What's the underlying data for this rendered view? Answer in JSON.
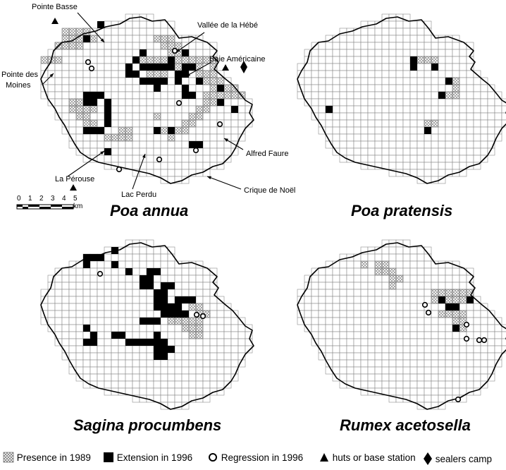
{
  "panels": [
    {
      "id": "poa-annua",
      "species": "Poa annua"
    },
    {
      "id": "poa-pratensis",
      "species": "Poa pratensis"
    },
    {
      "id": "sagina-procumbens",
      "species": "Sagina procumbens"
    },
    {
      "id": "rumex-acetosella",
      "species": "Rumex acetosella"
    }
  ],
  "place_labels": {
    "pointe_basse": "Pointe Basse",
    "vallee_hebe": "Vallée de la Hébé",
    "baie_americaine": "Baie Américaine",
    "pointe_des_moines_1": "Pointe des",
    "pointe_des_moines_2": "Moines",
    "alfred_faure": "Alfred Faure",
    "la_perouse": "La Pérouse",
    "lac_perdu": "Lac Perdu",
    "crique_de_noel": "Crique de Noël"
  },
  "scale_bar": {
    "ticks": [
      "0",
      "1",
      "2",
      "3",
      "4",
      "5 km"
    ]
  },
  "legend": {
    "presence": "Presence in 1989",
    "extension": "Extension in 1996",
    "regression": "Regression in 1996",
    "huts": "huts or base station",
    "sealers": "sealers camp"
  },
  "grid_cells": {
    "poa_annua": {
      "presence": [
        [
          3,
          2
        ],
        [
          4,
          2
        ],
        [
          5,
          2
        ],
        [
          6,
          2
        ],
        [
          3,
          3
        ],
        [
          4,
          3
        ],
        [
          5,
          3
        ],
        [
          6,
          3
        ],
        [
          7,
          3
        ],
        [
          2,
          4
        ],
        [
          3,
          4
        ],
        [
          4,
          4
        ],
        [
          5,
          4
        ],
        [
          16,
          3
        ],
        [
          17,
          3
        ],
        [
          18,
          3
        ],
        [
          17,
          4
        ],
        [
          18,
          4
        ],
        [
          19,
          4
        ],
        [
          18,
          5
        ],
        [
          19,
          5
        ],
        [
          20,
          5
        ],
        [
          0,
          6
        ],
        [
          1,
          6
        ],
        [
          2,
          6
        ],
        [
          14,
          6
        ],
        [
          15,
          6
        ],
        [
          16,
          6
        ],
        [
          17,
          6
        ],
        [
          18,
          6
        ],
        [
          19,
          6
        ],
        [
          20,
          6
        ],
        [
          21,
          6
        ],
        [
          22,
          6
        ],
        [
          23,
          6
        ],
        [
          24,
          6
        ],
        [
          15,
          7
        ],
        [
          16,
          7
        ],
        [
          19,
          7
        ],
        [
          21,
          7
        ],
        [
          22,
          7
        ],
        [
          24,
          7
        ],
        [
          15,
          8
        ],
        [
          16,
          8
        ],
        [
          17,
          8
        ],
        [
          22,
          8
        ],
        [
          23,
          8
        ],
        [
          24,
          8
        ],
        [
          23,
          9
        ],
        [
          24,
          9
        ],
        [
          25,
          9
        ],
        [
          24,
          10
        ],
        [
          25,
          10
        ],
        [
          26,
          10
        ],
        [
          27,
          10
        ],
        [
          23,
          11
        ],
        [
          24,
          11
        ],
        [
          25,
          11
        ],
        [
          26,
          11
        ],
        [
          27,
          11
        ],
        [
          28,
          11
        ],
        [
          4,
          12
        ],
        [
          5,
          12
        ],
        [
          23,
          12
        ],
        [
          24,
          12
        ],
        [
          25,
          12
        ],
        [
          4,
          13
        ],
        [
          5,
          13
        ],
        [
          6,
          13
        ],
        [
          7,
          13
        ],
        [
          22,
          13
        ],
        [
          23,
          13
        ],
        [
          5,
          14
        ],
        [
          6,
          14
        ],
        [
          16,
          14
        ],
        [
          21,
          14
        ],
        [
          22,
          14
        ],
        [
          6,
          15
        ],
        [
          7,
          15
        ],
        [
          20,
          15
        ],
        [
          21,
          15
        ],
        [
          6,
          16
        ],
        [
          7,
          16
        ],
        [
          8,
          16
        ],
        [
          11,
          16
        ],
        [
          12,
          16
        ],
        [
          17,
          16
        ],
        [
          18,
          16
        ],
        [
          19,
          16
        ],
        [
          20,
          16
        ],
        [
          9,
          17
        ],
        [
          10,
          17
        ],
        [
          11,
          17
        ],
        [
          12,
          17
        ],
        [
          18,
          17
        ]
      ],
      "extension": [
        [
          8,
          1
        ],
        [
          6,
          3
        ],
        [
          14,
          5
        ],
        [
          20,
          5
        ],
        [
          13,
          6
        ],
        [
          18,
          6
        ],
        [
          12,
          7
        ],
        [
          14,
          7
        ],
        [
          15,
          7
        ],
        [
          16,
          7
        ],
        [
          17,
          7
        ],
        [
          18,
          7
        ],
        [
          20,
          7
        ],
        [
          21,
          7
        ],
        [
          12,
          8
        ],
        [
          13,
          8
        ],
        [
          19,
          8
        ],
        [
          20,
          8
        ],
        [
          14,
          9
        ],
        [
          15,
          9
        ],
        [
          16,
          9
        ],
        [
          17,
          9
        ],
        [
          19,
          9
        ],
        [
          22,
          9
        ],
        [
          16,
          10
        ],
        [
          20,
          10
        ],
        [
          25,
          10
        ],
        [
          6,
          11
        ],
        [
          7,
          11
        ],
        [
          8,
          11
        ],
        [
          20,
          11
        ],
        [
          21,
          11
        ],
        [
          6,
          12
        ],
        [
          7,
          12
        ],
        [
          9,
          12
        ],
        [
          25,
          12
        ],
        [
          9,
          13
        ],
        [
          27,
          13
        ],
        [
          9,
          14
        ],
        [
          9,
          15
        ],
        [
          6,
          16
        ],
        [
          7,
          16
        ],
        [
          8,
          16
        ],
        [
          16,
          16
        ],
        [
          18,
          16
        ],
        [
          21,
          18
        ],
        [
          22,
          18
        ],
        [
          9,
          19
        ]
      ]
    },
    "poa_pratensis": {
      "presence": [
        [
          16,
          6
        ],
        [
          17,
          6
        ],
        [
          18,
          6
        ],
        [
          19,
          6
        ],
        [
          21,
          9
        ],
        [
          22,
          9
        ],
        [
          22,
          10
        ],
        [
          20,
          11
        ],
        [
          21,
          11
        ],
        [
          22,
          11
        ],
        [
          4,
          13
        ],
        [
          18,
          15
        ],
        [
          19,
          15
        ]
      ],
      "extension": [
        [
          16,
          6
        ],
        [
          16,
          7
        ],
        [
          19,
          7
        ],
        [
          21,
          9
        ],
        [
          20,
          11
        ],
        [
          4,
          13
        ],
        [
          18,
          16
        ]
      ]
    },
    "sagina_procumbens": {
      "presence": [
        [
          21,
          9
        ],
        [
          22,
          9
        ],
        [
          22,
          10
        ],
        [
          23,
          10
        ],
        [
          18,
          11
        ],
        [
          19,
          11
        ],
        [
          20,
          11
        ],
        [
          21,
          11
        ],
        [
          22,
          11
        ],
        [
          20,
          12
        ],
        [
          21,
          12
        ],
        [
          22,
          12
        ],
        [
          21,
          13
        ],
        [
          22,
          13
        ]
      ],
      "extension": [
        [
          10,
          1
        ],
        [
          6,
          2
        ],
        [
          7,
          2
        ],
        [
          8,
          2
        ],
        [
          6,
          3
        ],
        [
          10,
          3
        ],
        [
          12,
          4
        ],
        [
          15,
          4
        ],
        [
          16,
          4
        ],
        [
          14,
          5
        ],
        [
          15,
          5
        ],
        [
          14,
          6
        ],
        [
          15,
          6
        ],
        [
          17,
          6
        ],
        [
          18,
          6
        ],
        [
          16,
          7
        ],
        [
          17,
          7
        ],
        [
          16,
          8
        ],
        [
          17,
          8
        ],
        [
          19,
          8
        ],
        [
          20,
          8
        ],
        [
          21,
          8
        ],
        [
          16,
          9
        ],
        [
          17,
          9
        ],
        [
          18,
          9
        ],
        [
          19,
          9
        ],
        [
          17,
          10
        ],
        [
          18,
          10
        ],
        [
          19,
          10
        ],
        [
          20,
          10
        ],
        [
          14,
          11
        ],
        [
          15,
          11
        ],
        [
          16,
          11
        ],
        [
          6,
          12
        ],
        [
          7,
          13
        ],
        [
          10,
          13
        ],
        [
          11,
          13
        ],
        [
          16,
          13
        ],
        [
          6,
          14
        ],
        [
          7,
          14
        ],
        [
          13,
          14
        ],
        [
          14,
          14
        ],
        [
          15,
          14
        ],
        [
          16,
          14
        ],
        [
          17,
          14
        ],
        [
          16,
          15
        ],
        [
          17,
          15
        ],
        [
          18,
          15
        ],
        [
          16,
          16
        ],
        [
          17,
          16
        ],
        [
          12,
          14
        ]
      ]
    },
    "rumex_acetosella": {
      "presence": [
        [
          9,
          3
        ],
        [
          11,
          3
        ],
        [
          12,
          3
        ],
        [
          11,
          4
        ],
        [
          12,
          4
        ],
        [
          13,
          4
        ],
        [
          13,
          5
        ],
        [
          14,
          5
        ],
        [
          13,
          6
        ],
        [
          19,
          7
        ],
        [
          20,
          7
        ],
        [
          21,
          7
        ],
        [
          22,
          7
        ],
        [
          23,
          7
        ],
        [
          24,
          7
        ],
        [
          19,
          8
        ],
        [
          20,
          8
        ],
        [
          21,
          8
        ],
        [
          22,
          8
        ],
        [
          23,
          8
        ],
        [
          21,
          9
        ],
        [
          22,
          9
        ],
        [
          20,
          10
        ],
        [
          21,
          10
        ],
        [
          22,
          10
        ],
        [
          23,
          10
        ],
        [
          22,
          11
        ],
        [
          23,
          11
        ],
        [
          22,
          12
        ],
        [
          23,
          12
        ]
      ],
      "extension": [
        [
          20,
          8
        ],
        [
          21,
          9
        ],
        [
          22,
          9
        ],
        [
          24,
          8
        ],
        [
          22,
          12
        ]
      ]
    }
  }
}
